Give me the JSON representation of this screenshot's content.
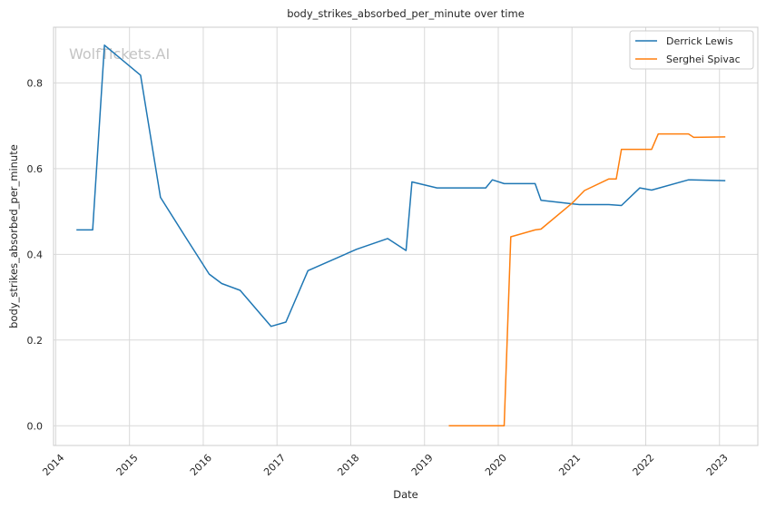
{
  "chart_data": {
    "type": "line",
    "title": "body_strikes_absorbed_per_minute over time",
    "xlabel": "Date",
    "ylabel": "body_strikes_absorbed_per_minute",
    "watermark": "WolfTickets.AI",
    "xlim": [
      2013.97,
      2023.52
    ],
    "ylim": [
      -0.046,
      0.93
    ],
    "x_ticks": [
      2014,
      2015,
      2016,
      2017,
      2018,
      2019,
      2020,
      2021,
      2022,
      2023
    ],
    "x_tick_labels": [
      "2014",
      "2015",
      "2016",
      "2017",
      "2018",
      "2019",
      "2020",
      "2021",
      "2022",
      "2023"
    ],
    "y_ticks": [
      0.0,
      0.2,
      0.4,
      0.6,
      0.8
    ],
    "y_tick_labels": [
      "0.0",
      "0.2",
      "0.4",
      "0.6",
      "0.8"
    ],
    "grid": true,
    "legend_position": "top-right",
    "series": [
      {
        "name": "Derrick Lewis",
        "color": "#1f77b4",
        "x": [
          2014.28,
          2014.5,
          2014.66,
          2015.15,
          2015.42,
          2015.75,
          2016.08,
          2016.25,
          2016.5,
          2016.92,
          2017.12,
          2017.42,
          2018.08,
          2018.5,
          2018.75,
          2018.83,
          2019.17,
          2019.83,
          2019.92,
          2020.08,
          2020.5,
          2020.58,
          2021.0,
          2021.1,
          2021.5,
          2021.67,
          2021.92,
          2022.08,
          2022.58,
          2023.08
        ],
        "y": [
          0.457,
          0.457,
          0.888,
          0.818,
          0.533,
          0.443,
          0.354,
          0.332,
          0.316,
          0.232,
          0.242,
          0.362,
          0.412,
          0.437,
          0.409,
          0.569,
          0.555,
          0.555,
          0.574,
          0.565,
          0.565,
          0.526,
          0.518,
          0.516,
          0.516,
          0.514,
          0.555,
          0.55,
          0.574,
          0.572
        ]
      },
      {
        "name": "Serghei Spivac",
        "color": "#ff7f0e",
        "x": [
          2019.33,
          2020.08,
          2020.17,
          2020.5,
          2020.58,
          2021.0,
          2021.17,
          2021.5,
          2021.6,
          2021.67,
          2022.0,
          2022.08,
          2022.17,
          2022.58,
          2022.65,
          2023.08
        ],
        "y": [
          0.0,
          0.0,
          0.441,
          0.457,
          0.459,
          0.519,
          0.549,
          0.576,
          0.576,
          0.645,
          0.645,
          0.645,
          0.681,
          0.681,
          0.673,
          0.674
        ]
      }
    ]
  }
}
